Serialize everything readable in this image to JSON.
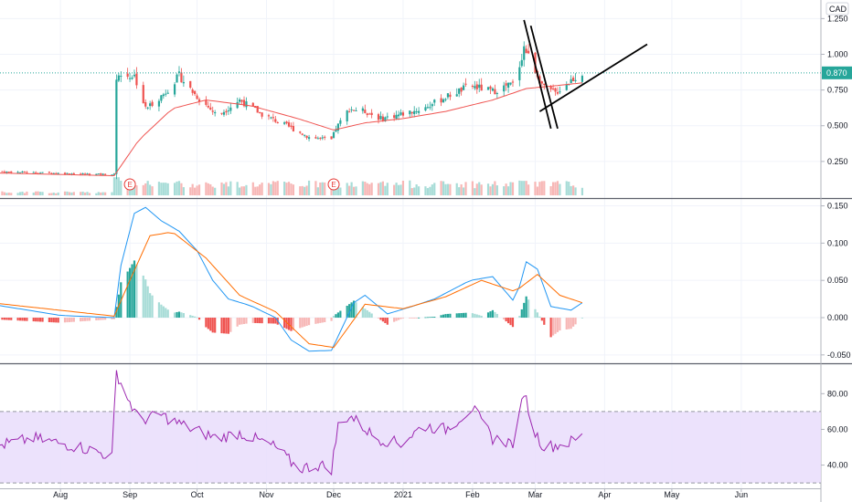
{
  "currency": "CAD",
  "last_price_label": "0.870",
  "colors": {
    "up": "#26a69a",
    "down": "#ef5350",
    "up_light": "#a7dcd7",
    "down_light": "#f7b7b6",
    "ma": "#ef5350",
    "macd": "#2196f3",
    "signal": "#ff6d00",
    "rsi": "#9c27b0",
    "rsi_band": "#e9ddfb",
    "grid": "#f0f3fa",
    "last_price": "#26a69a",
    "drawing": "#000000",
    "earnings": "#e53935"
  },
  "x_axis_labels": [
    "Aug",
    "Sep",
    "Oct",
    "Nov",
    "Dec",
    "2021",
    "Feb",
    "Mar",
    "Apr",
    "May",
    "Jun"
  ],
  "earnings_marker": "E",
  "chart_data": [
    {
      "type": "candlestick",
      "y_ticks": [
        "1.250",
        "1.000",
        "0.750",
        "0.500",
        "0.250"
      ],
      "y_tick_values": [
        1.25,
        1.0,
        0.75,
        0.5,
        0.25
      ],
      "ylim": [
        0.0,
        1.38
      ],
      "last_price": 0.87,
      "close_anchors": [
        [
          "2020-07-01",
          0.18
        ],
        [
          "2020-08-18",
          0.16
        ],
        [
          "2020-08-25",
          0.16
        ],
        [
          "2020-08-26",
          0.85
        ],
        [
          "2020-09-03",
          0.85
        ],
        [
          "2020-09-08",
          0.62
        ],
        [
          "2020-09-16",
          0.72
        ],
        [
          "2020-09-23",
          0.85
        ],
        [
          "2020-09-30",
          0.72
        ],
        [
          "2020-10-10",
          0.57
        ],
        [
          "2020-10-20",
          0.68
        ],
        [
          "2020-10-30",
          0.58
        ],
        [
          "2020-11-10",
          0.5
        ],
        [
          "2020-11-20",
          0.42
        ],
        [
          "2020-11-30",
          0.4
        ],
        [
          "2020-12-02",
          0.48
        ],
        [
          "2020-12-08",
          0.62
        ],
        [
          "2020-12-15",
          0.6
        ],
        [
          "2020-12-22",
          0.55
        ],
        [
          "2020-12-31",
          0.58
        ],
        [
          "2021-01-10",
          0.62
        ],
        [
          "2021-01-20",
          0.7
        ],
        [
          "2021-01-31",
          0.78
        ],
        [
          "2021-02-10",
          0.74
        ],
        [
          "2021-02-20",
          0.8
        ],
        [
          "2021-02-24",
          1.05
        ],
        [
          "2021-02-28",
          0.92
        ],
        [
          "2021-03-05",
          0.76
        ],
        [
          "2021-03-10",
          0.73
        ],
        [
          "2021-03-17",
          0.82
        ],
        [
          "2021-03-22",
          0.87
        ]
      ],
      "ma_anchors": [
        [
          "2020-07-01",
          0.17
        ],
        [
          "2020-08-25",
          0.15
        ],
        [
          "2020-09-05",
          0.4
        ],
        [
          "2020-09-20",
          0.62
        ],
        [
          "2020-10-05",
          0.68
        ],
        [
          "2020-10-25",
          0.64
        ],
        [
          "2020-11-15",
          0.55
        ],
        [
          "2020-12-01",
          0.47
        ],
        [
          "2020-12-15",
          0.52
        ],
        [
          "2021-01-01",
          0.55
        ],
        [
          "2021-01-20",
          0.6
        ],
        [
          "2021-02-10",
          0.68
        ],
        [
          "2021-02-25",
          0.76
        ],
        [
          "2021-03-10",
          0.78
        ],
        [
          "2021-03-22",
          0.8
        ]
      ],
      "volume_spikes": [
        [
          "2020-08-26",
          1.0
        ],
        [
          "2020-09-03",
          0.55
        ],
        [
          "2020-09-10",
          0.5
        ],
        [
          "2020-09-16",
          0.7
        ],
        [
          "2020-10-05",
          0.45
        ],
        [
          "2020-12-02",
          0.55
        ],
        [
          "2021-02-24",
          0.8
        ],
        [
          "2021-03-17",
          0.5
        ]
      ],
      "earnings_dates": [
        "2020-09-01",
        "2020-12-01"
      ],
      "trend_lines": [
        {
          "from": [
            "2021-02-24",
            1.24
          ],
          "to": [
            "2021-03-08",
            0.48
          ]
        },
        {
          "from": [
            "2021-02-27",
            1.2
          ],
          "to": [
            "2021-03-11",
            0.48
          ]
        },
        {
          "from": [
            "2021-03-03",
            0.6
          ],
          "to": [
            "2021-04-20",
            1.07
          ]
        }
      ]
    },
    {
      "type": "line",
      "y_ticks": [
        "0.150",
        "0.100",
        "0.050",
        "0.000",
        "-0.050"
      ],
      "y_tick_values": [
        0.15,
        0.1,
        0.05,
        0.0,
        -0.05
      ],
      "ylim": [
        -0.06,
        0.158
      ],
      "series": [
        {
          "key": "macd",
          "anchors": [
            [
              "2020-07-01",
              0.018
            ],
            [
              "2020-08-01",
              0.003
            ],
            [
              "2020-08-25",
              0.0
            ],
            [
              "2020-08-28",
              0.07
            ],
            [
              "2020-09-03",
              0.14
            ],
            [
              "2020-09-08",
              0.148
            ],
            [
              "2020-09-15",
              0.13
            ],
            [
              "2020-09-23",
              0.116
            ],
            [
              "2020-10-01",
              0.09
            ],
            [
              "2020-10-08",
              0.05
            ],
            [
              "2020-10-15",
              0.025
            ],
            [
              "2020-10-25",
              0.016
            ],
            [
              "2020-11-05",
              0.0
            ],
            [
              "2020-11-12",
              -0.03
            ],
            [
              "2020-11-20",
              -0.045
            ],
            [
              "2020-11-30",
              -0.044
            ],
            [
              "2020-12-10",
              0.02
            ],
            [
              "2020-12-15",
              0.03
            ],
            [
              "2020-12-25",
              0.005
            ],
            [
              "2021-01-05",
              0.015
            ],
            [
              "2021-01-15",
              0.025
            ],
            [
              "2021-01-31",
              0.05
            ],
            [
              "2021-02-10",
              0.055
            ],
            [
              "2021-02-20",
              0.02
            ],
            [
              "2021-02-25",
              0.075
            ],
            [
              "2021-03-02",
              0.065
            ],
            [
              "2021-03-08",
              0.015
            ],
            [
              "2021-03-17",
              0.01
            ],
            [
              "2021-03-22",
              0.02
            ]
          ]
        },
        {
          "key": "signal",
          "anchors": [
            [
              "2020-07-01",
              0.02
            ],
            [
              "2020-08-25",
              0.002
            ],
            [
              "2020-09-01",
              0.05
            ],
            [
              "2020-09-10",
              0.11
            ],
            [
              "2020-09-20",
              0.115
            ],
            [
              "2020-10-05",
              0.08
            ],
            [
              "2020-10-20",
              0.03
            ],
            [
              "2020-11-05",
              0.008
            ],
            [
              "2020-11-20",
              -0.035
            ],
            [
              "2020-12-01",
              -0.04
            ],
            [
              "2020-12-15",
              0.018
            ],
            [
              "2021-01-01",
              0.012
            ],
            [
              "2021-01-20",
              0.028
            ],
            [
              "2021-02-05",
              0.05
            ],
            [
              "2021-02-20",
              0.035
            ],
            [
              "2021-03-02",
              0.058
            ],
            [
              "2021-03-12",
              0.03
            ],
            [
              "2021-03-22",
              0.02
            ]
          ]
        }
      ]
    },
    {
      "type": "line",
      "y_ticks": [
        "80.00",
        "60.00",
        "40.00"
      ],
      "y_tick_values": [
        80,
        60,
        40
      ],
      "ylim": [
        27,
        96
      ],
      "band": [
        30,
        70
      ],
      "anchors": [
        [
          "2020-07-01",
          50
        ],
        [
          "2020-07-20",
          55
        ],
        [
          "2020-08-10",
          50
        ],
        [
          "2020-08-24",
          45
        ],
        [
          "2020-08-26",
          92
        ],
        [
          "2020-08-30",
          80
        ],
        [
          "2020-09-05",
          65
        ],
        [
          "2020-09-15",
          68
        ],
        [
          "2020-09-25",
          62
        ],
        [
          "2020-10-10",
          55
        ],
        [
          "2020-10-20",
          58
        ],
        [
          "2020-11-05",
          50
        ],
        [
          "2020-11-15",
          38
        ],
        [
          "2020-11-25",
          40
        ],
        [
          "2020-11-30",
          38
        ],
        [
          "2020-12-03",
          62
        ],
        [
          "2020-12-08",
          68
        ],
        [
          "2020-12-20",
          55
        ],
        [
          "2020-12-31",
          52
        ],
        [
          "2021-01-10",
          62
        ],
        [
          "2021-01-20",
          60
        ],
        [
          "2021-02-01",
          72
        ],
        [
          "2021-02-10",
          55
        ],
        [
          "2021-02-20",
          52
        ],
        [
          "2021-02-24",
          82
        ],
        [
          "2021-02-28",
          60
        ],
        [
          "2021-03-05",
          50
        ],
        [
          "2021-03-15",
          52
        ],
        [
          "2021-03-22",
          56
        ]
      ]
    }
  ]
}
